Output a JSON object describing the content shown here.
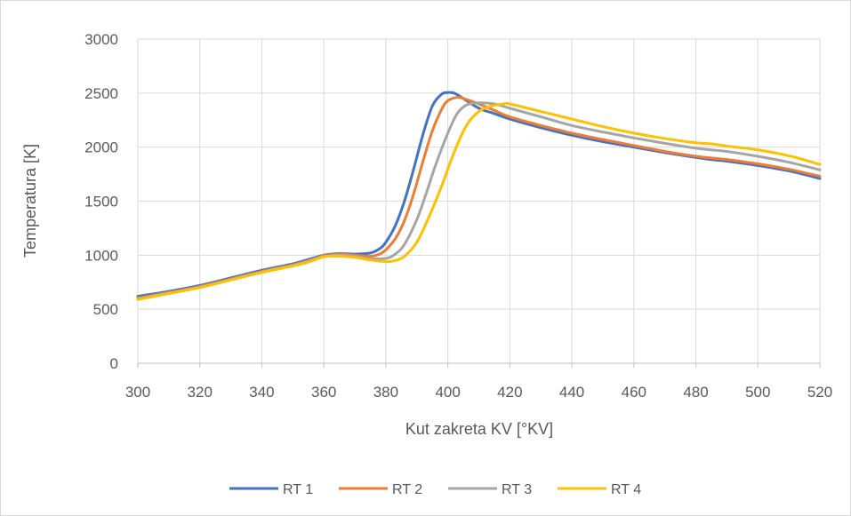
{
  "chart_data": {
    "type": "line",
    "title": "",
    "xlabel": "Kut zakreta KV [°KV]",
    "ylabel": "Temperatura [K]",
    "xlim": [
      300,
      520
    ],
    "ylim": [
      0,
      3000
    ],
    "xticks": [
      300,
      320,
      340,
      360,
      380,
      400,
      420,
      440,
      460,
      480,
      500,
      520
    ],
    "yticks": [
      0,
      500,
      1000,
      1500,
      2000,
      2500,
      3000
    ],
    "grid": true,
    "legend_position": "bottom",
    "series": [
      {
        "name": "RT 1",
        "color": "#4472c4",
        "x": [
          300,
          310,
          320,
          330,
          340,
          350,
          355,
          360,
          365,
          370,
          375,
          378,
          380,
          383,
          386,
          389,
          392,
          395,
          398,
          400,
          402,
          405,
          410,
          415,
          420,
          430,
          440,
          450,
          460,
          470,
          480,
          485,
          490,
          500,
          510,
          520
        ],
        "y": [
          620,
          665,
          720,
          790,
          860,
          920,
          960,
          1000,
          1015,
          1010,
          1020,
          1060,
          1120,
          1270,
          1500,
          1800,
          2120,
          2380,
          2490,
          2505,
          2500,
          2450,
          2360,
          2310,
          2260,
          2180,
          2110,
          2050,
          2000,
          1950,
          1905,
          1885,
          1870,
          1830,
          1780,
          1710
        ]
      },
      {
        "name": "RT 2",
        "color": "#ed7d31",
        "x": [
          300,
          310,
          320,
          330,
          340,
          350,
          355,
          360,
          365,
          370,
          375,
          378,
          380,
          383,
          386,
          389,
          392,
          395,
          398,
          400,
          403,
          405,
          410,
          415,
          420,
          430,
          440,
          450,
          460,
          470,
          480,
          485,
          490,
          500,
          510,
          520
        ],
        "y": [
          605,
          655,
          710,
          780,
          850,
          910,
          950,
          995,
          1010,
          1000,
          990,
          1010,
          1050,
          1150,
          1320,
          1570,
          1870,
          2150,
          2350,
          2430,
          2460,
          2450,
          2400,
          2340,
          2280,
          2200,
          2130,
          2070,
          2015,
          1960,
          1915,
          1900,
          1885,
          1845,
          1795,
          1730
        ]
      },
      {
        "name": "RT 3",
        "color": "#a5a5a5",
        "x": [
          300,
          310,
          320,
          330,
          340,
          350,
          355,
          360,
          365,
          370,
          375,
          380,
          383,
          386,
          390,
          393,
          396,
          400,
          403,
          406,
          410,
          415,
          420,
          430,
          440,
          450,
          460,
          470,
          480,
          485,
          490,
          500,
          510,
          520
        ],
        "y": [
          598,
          650,
          705,
          775,
          845,
          905,
          945,
          990,
          1000,
          990,
          970,
          970,
          1010,
          1100,
          1330,
          1570,
          1830,
          2130,
          2310,
          2390,
          2410,
          2400,
          2360,
          2280,
          2200,
          2140,
          2085,
          2035,
          1990,
          1975,
          1960,
          1915,
          1860,
          1790
        ]
      },
      {
        "name": "RT 4",
        "color": "#ffc000",
        "x": [
          300,
          310,
          320,
          330,
          340,
          350,
          355,
          360,
          365,
          370,
          375,
          380,
          383,
          386,
          390,
          394,
          398,
          402,
          406,
          410,
          414,
          418,
          420,
          430,
          440,
          450,
          460,
          470,
          480,
          485,
          490,
          500,
          510,
          520
        ],
        "y": [
          590,
          645,
          700,
          770,
          840,
          900,
          935,
          985,
          990,
          980,
          955,
          940,
          950,
          990,
          1120,
          1360,
          1640,
          1950,
          2200,
          2330,
          2380,
          2400,
          2400,
          2330,
          2260,
          2190,
          2130,
          2080,
          2040,
          2030,
          2010,
          1975,
          1920,
          1840
        ]
      }
    ]
  }
}
